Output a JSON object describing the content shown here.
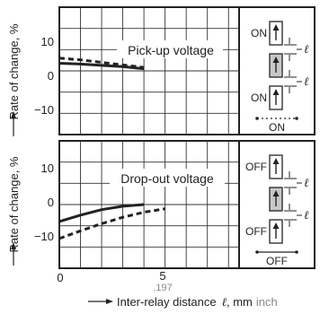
{
  "colors": {
    "ink": "#222222",
    "grid": "#333333",
    "fill": "#c8c8c8",
    "inch": "#888888"
  },
  "xaxis": {
    "label": "Inter-relay distance",
    "var": "ℓ",
    "unit": ", mm",
    "unit_alt": "inch",
    "tick_0": "0",
    "tick_5": "5",
    "tick_5_alt": ".197"
  },
  "chart_data": [
    {
      "type": "line",
      "title": "Pick-up voltage",
      "ylabel": "Rate of change, %",
      "xlim": [
        0,
        8.5
      ],
      "ylim": [
        -15,
        15
      ],
      "yticks": [
        10,
        0,
        -10
      ],
      "ytick_labels": [
        "10",
        "0",
        "−10"
      ],
      "grid": true,
      "series": [
        {
          "style": "solid",
          "x": [
            0,
            1,
            2,
            3,
            4
          ],
          "y": [
            1.8,
            1.6,
            1.3,
            1.0,
            0.5
          ]
        },
        {
          "style": "dashed",
          "x": [
            0,
            1,
            2,
            3,
            4
          ],
          "y": [
            3.0,
            2.6,
            2.0,
            1.4,
            0.8
          ]
        }
      ],
      "diagram": {
        "top_state": "ON",
        "bottom_state": "ON",
        "dim_label": "ℓ",
        "caption": "ON"
      }
    },
    {
      "type": "line",
      "title": "Drop-out voltage",
      "ylabel": "Rate of change, %",
      "xlim": [
        0,
        8.5
      ],
      "ylim": [
        -15,
        15
      ],
      "yticks": [
        10,
        0,
        -10
      ],
      "ytick_labels": [
        "10",
        "0",
        "−10"
      ],
      "grid": true,
      "series": [
        {
          "style": "solid",
          "x": [
            0,
            1,
            2,
            3,
            4
          ],
          "y": [
            -4.0,
            -2.5,
            -1.2,
            -0.4,
            0.0
          ]
        },
        {
          "style": "dashed",
          "x": [
            0,
            1,
            2,
            3,
            4,
            5
          ],
          "y": [
            -8.0,
            -6.2,
            -4.5,
            -3.0,
            -1.8,
            -1.0
          ]
        }
      ],
      "diagram": {
        "top_state": "OFF",
        "bottom_state": "OFF",
        "dim_label": "ℓ",
        "caption": "OFF"
      }
    }
  ]
}
